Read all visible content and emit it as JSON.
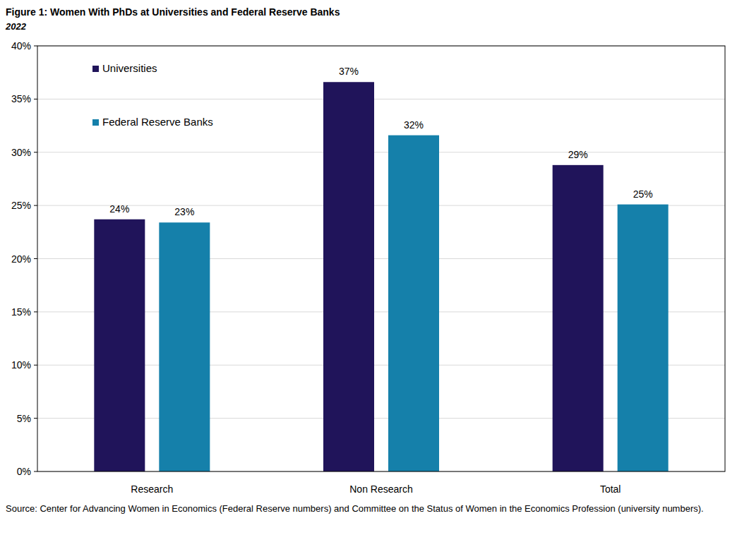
{
  "chart_data": {
    "type": "bar",
    "title": "Figure 1: Women With PhDs at Universities and Federal Reserve Banks",
    "subtitle": "2022",
    "source": "Source: Center for Advancing Women in Economics (Federal Reserve numbers) and Committee on the Status of Women in the Economics Profession (university numbers).",
    "categories": [
      "Research",
      "Non Research",
      "Total"
    ],
    "series": [
      {
        "name": "Universities",
        "color": "#20145a",
        "values": [
          23.7,
          36.6,
          28.8
        ],
        "value_labels": [
          "24%",
          "37%",
          "29%"
        ]
      },
      {
        "name": "Federal Reserve Banks",
        "color": "#1580aa",
        "values": [
          23.4,
          31.6,
          25.1
        ],
        "value_labels": [
          "23%",
          "32%",
          "25%"
        ]
      }
    ],
    "ylim": [
      0,
      40
    ],
    "yticks": [
      {
        "value": 0,
        "label": "0%"
      },
      {
        "value": 5,
        "label": "5%"
      },
      {
        "value": 10,
        "label": "10%"
      },
      {
        "value": 15,
        "label": "15%"
      },
      {
        "value": 20,
        "label": "20%"
      },
      {
        "value": 25,
        "label": "25%"
      },
      {
        "value": 30,
        "label": "30%"
      },
      {
        "value": 35,
        "label": "35%"
      },
      {
        "value": 40,
        "label": "40%"
      }
    ],
    "grid": true,
    "legend": "upper left",
    "data_labels": true
  }
}
